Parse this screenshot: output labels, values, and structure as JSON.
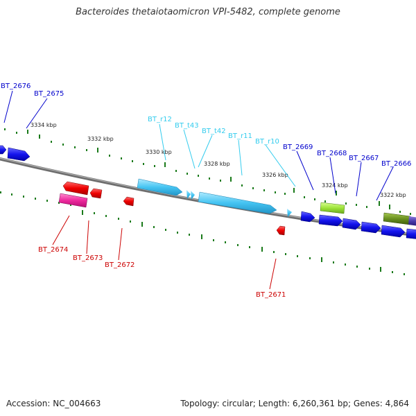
{
  "title": "Bacteroides thetaiotaomicron VPI-5482, complete genome",
  "accession_text": "Accession: NC_004663",
  "summary_text": "Topology: circular; Length: 6,260,361 bp; Genes: 4,864",
  "kbp_ticks": [
    "3334 kbp",
    "3332 kbp",
    "3330 kbp",
    "3328 kbp",
    "3326 kbp",
    "3324 kbp",
    "3322 kbp"
  ],
  "gene_labels": {
    "bt2676": "BT_2676",
    "bt2675": "BT_2675",
    "btr12": "BT_r12",
    "btt43": "BT_t43",
    "btt42": "BT_t42",
    "btr11": "BT_r11",
    "btr10": "BT_r10",
    "bt2669": "BT_2669",
    "bt2668": "BT_2668",
    "bt2667": "BT_2667",
    "bt2666": "BT_2666",
    "bt2674": "BT_2674",
    "bt2673": "BT_2673",
    "bt2672": "BT_2672",
    "bt2671": "BT_2671"
  },
  "colors": {
    "forward_label": "#0000cc",
    "rna_label": "#33ccee",
    "reverse_label": "#cc0000",
    "tick": "#1a7a1a",
    "backbone": "#808080"
  }
}
